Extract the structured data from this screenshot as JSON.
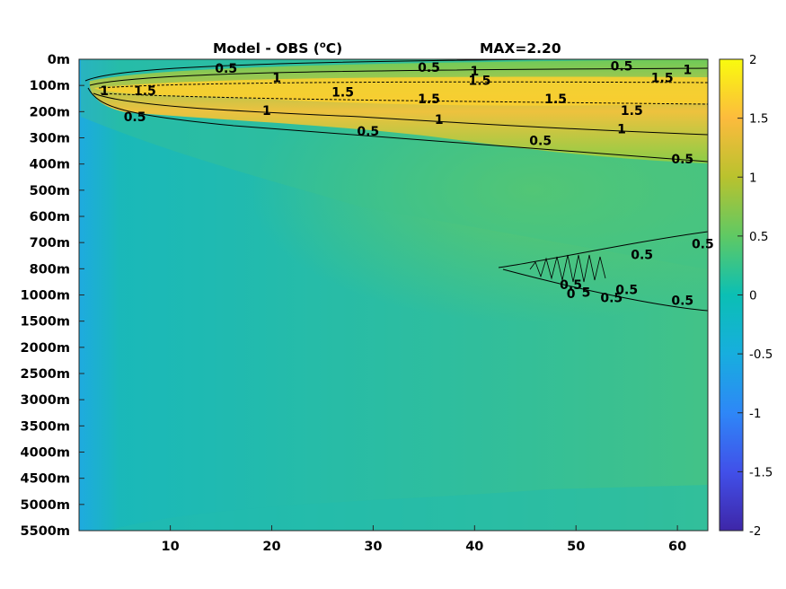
{
  "chart_data": {
    "type": "heatmap",
    "title": "Model - OBS (",
    "title_unit": "C)",
    "title_degree": "o",
    "max_label": "MAX=2.20",
    "x_ticks": [
      10,
      20,
      30,
      40,
      50,
      60
    ],
    "x_range": [
      1,
      63
    ],
    "y_tick_labels": [
      "0m",
      "100m",
      "200m",
      "300m",
      "400m",
      "500m",
      "600m",
      "700m",
      "800m",
      "1000m",
      "1500m",
      "2000m",
      "2500m",
      "3000m",
      "3500m",
      "4000m",
      "4500m",
      "5000m",
      "5500m"
    ],
    "colorbar": {
      "range": [
        -2,
        2
      ],
      "ticks": [
        "2",
        "1.5",
        "1",
        "0.5",
        "0",
        "-0.5",
        "-1",
        "-1.5",
        "-2"
      ],
      "colormap": "parula"
    },
    "contour_levels": [
      0.5,
      1,
      1.5
    ],
    "contour_labels": [
      {
        "text": "0.5",
        "x": 15.5,
        "depth": 0.35
      },
      {
        "text": "1",
        "x": 20.5,
        "depth": 0.7
      },
      {
        "text": "1",
        "x": 3.5,
        "depth": 1.2
      },
      {
        "text": "1.5",
        "x": 7.5,
        "depth": 1.2
      },
      {
        "text": "1.5",
        "x": 27,
        "depth": 1.25
      },
      {
        "text": "1",
        "x": 19.5,
        "depth": 1.95
      },
      {
        "text": "0.5",
        "x": 6.5,
        "depth": 2.2
      },
      {
        "text": "0.5",
        "x": 29.5,
        "depth": 2.75
      },
      {
        "text": "0.5",
        "x": 35.5,
        "depth": 0.3
      },
      {
        "text": "1",
        "x": 40,
        "depth": 0.45
      },
      {
        "text": "1.5",
        "x": 40.5,
        "depth": 0.8
      },
      {
        "text": "1.5",
        "x": 35.5,
        "depth": 1.5
      },
      {
        "text": "1",
        "x": 36.5,
        "depth": 2.3
      },
      {
        "text": "1.5",
        "x": 48,
        "depth": 1.5
      },
      {
        "text": "0.5",
        "x": 46.5,
        "depth": 3.1
      },
      {
        "text": "0.5",
        "x": 54.5,
        "depth": 0.25
      },
      {
        "text": "1.5",
        "x": 58.5,
        "depth": 0.7
      },
      {
        "text": "1",
        "x": 61,
        "depth": 0.4
      },
      {
        "text": "1.5",
        "x": 55.5,
        "depth": 1.95
      },
      {
        "text": "1",
        "x": 54.5,
        "depth": 2.65
      },
      {
        "text": "0.5",
        "x": 60.5,
        "depth": 3.8
      },
      {
        "text": "0.5",
        "x": 62.5,
        "depth": 7.05
      },
      {
        "text": "0.5",
        "x": 56.5,
        "depth": 7.45
      },
      {
        "text": "0.5",
        "x": 49.5,
        "depth": 8.6
      },
      {
        "text": "0",
        "x": 49.5,
        "depth": 8.95
      },
      {
        "text": "5",
        "x": 51,
        "depth": 8.9
      },
      {
        "text": "0.5",
        "x": 53.5,
        "depth": 9.1
      },
      {
        "text": "0.5",
        "x": 55,
        "depth": 8.8
      },
      {
        "text": "0.5",
        "x": 60.5,
        "depth": 9.2
      }
    ]
  }
}
